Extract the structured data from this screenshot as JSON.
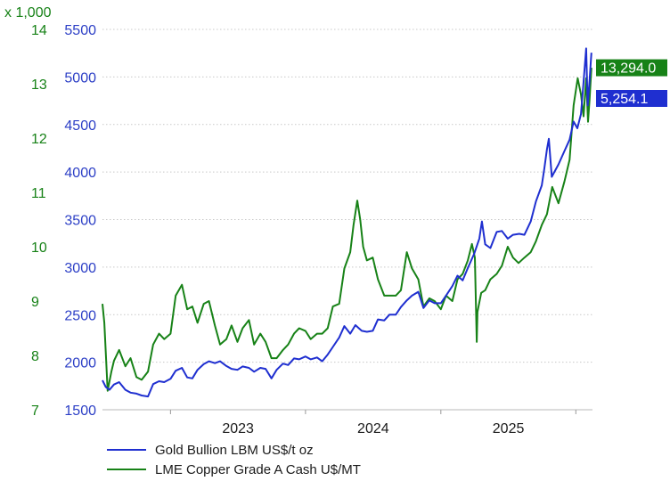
{
  "chart_data": {
    "type": "line",
    "multiplier_label": "x 1,000",
    "x_ticks": [
      "2023",
      "2024",
      "2025"
    ],
    "left_axis": {
      "ticks": [
        "7",
        "8",
        "9",
        "10",
        "11",
        "12",
        "13",
        "14"
      ],
      "ylim": [
        7,
        14
      ],
      "color": "#178217"
    },
    "right_axis": {
      "ticks": [
        "1500",
        "2000",
        "2500",
        "3000",
        "3500",
        "4000",
        "4500",
        "5000",
        "5500"
      ],
      "ylim": [
        1500,
        5500
      ],
      "color": "#2c3fc6"
    },
    "xlim": [
      "2022-07-01",
      "2026-02-15"
    ],
    "series": [
      {
        "name": "Gold Bullion LBM US$/t oz",
        "axis": "right",
        "color": "#1f2fd0",
        "last_label": "5,254.1",
        "points": [
          [
            "2022-07-01",
            1810
          ],
          [
            "2022-07-10",
            1740
          ],
          [
            "2022-07-20",
            1710
          ],
          [
            "2022-08-01",
            1765
          ],
          [
            "2022-08-15",
            1790
          ],
          [
            "2022-09-01",
            1710
          ],
          [
            "2022-09-15",
            1680
          ],
          [
            "2022-10-01",
            1670
          ],
          [
            "2022-10-15",
            1650
          ],
          [
            "2022-11-01",
            1640
          ],
          [
            "2022-11-15",
            1770
          ],
          [
            "2022-12-01",
            1800
          ],
          [
            "2022-12-15",
            1790
          ],
          [
            "2023-01-01",
            1825
          ],
          [
            "2023-01-15",
            1910
          ],
          [
            "2023-02-01",
            1940
          ],
          [
            "2023-02-15",
            1840
          ],
          [
            "2023-03-01",
            1830
          ],
          [
            "2023-03-15",
            1920
          ],
          [
            "2023-04-01",
            1980
          ],
          [
            "2023-04-15",
            2010
          ],
          [
            "2023-05-01",
            1990
          ],
          [
            "2023-05-15",
            2010
          ],
          [
            "2023-06-01",
            1960
          ],
          [
            "2023-06-15",
            1930
          ],
          [
            "2023-07-01",
            1920
          ],
          [
            "2023-07-15",
            1955
          ],
          [
            "2023-08-01",
            1940
          ],
          [
            "2023-08-15",
            1900
          ],
          [
            "2023-09-01",
            1940
          ],
          [
            "2023-09-15",
            1930
          ],
          [
            "2023-10-01",
            1830
          ],
          [
            "2023-10-15",
            1920
          ],
          [
            "2023-11-01",
            1985
          ],
          [
            "2023-11-15",
            1970
          ],
          [
            "2023-12-01",
            2040
          ],
          [
            "2023-12-15",
            2030
          ],
          [
            "2024-01-01",
            2060
          ],
          [
            "2024-01-15",
            2030
          ],
          [
            "2024-02-01",
            2050
          ],
          [
            "2024-02-15",
            2010
          ],
          [
            "2024-03-01",
            2080
          ],
          [
            "2024-03-15",
            2160
          ],
          [
            "2024-04-01",
            2260
          ],
          [
            "2024-04-15",
            2380
          ],
          [
            "2024-05-01",
            2300
          ],
          [
            "2024-05-15",
            2390
          ],
          [
            "2024-06-01",
            2330
          ],
          [
            "2024-06-15",
            2320
          ],
          [
            "2024-07-01",
            2330
          ],
          [
            "2024-07-15",
            2450
          ],
          [
            "2024-08-01",
            2440
          ],
          [
            "2024-08-15",
            2500
          ],
          [
            "2024-09-01",
            2500
          ],
          [
            "2024-09-15",
            2580
          ],
          [
            "2024-10-01",
            2650
          ],
          [
            "2024-10-15",
            2700
          ],
          [
            "2024-11-01",
            2740
          ],
          [
            "2024-11-15",
            2570
          ],
          [
            "2024-12-01",
            2650
          ],
          [
            "2024-12-15",
            2620
          ],
          [
            "2025-01-01",
            2620
          ],
          [
            "2025-01-15",
            2700
          ],
          [
            "2025-02-01",
            2800
          ],
          [
            "2025-02-15",
            2910
          ],
          [
            "2025-03-01",
            2860
          ],
          [
            "2025-03-15",
            2990
          ],
          [
            "2025-04-01",
            3140
          ],
          [
            "2025-04-15",
            3300
          ],
          [
            "2025-04-22",
            3480
          ],
          [
            "2025-05-01",
            3240
          ],
          [
            "2025-05-15",
            3200
          ],
          [
            "2025-06-01",
            3370
          ],
          [
            "2025-06-15",
            3380
          ],
          [
            "2025-07-01",
            3300
          ],
          [
            "2025-07-15",
            3340
          ],
          [
            "2025-08-01",
            3350
          ],
          [
            "2025-08-15",
            3340
          ],
          [
            "2025-09-01",
            3480
          ],
          [
            "2025-09-15",
            3690
          ],
          [
            "2025-10-01",
            3860
          ],
          [
            "2025-10-08",
            4040
          ],
          [
            "2025-10-15",
            4240
          ],
          [
            "2025-10-20",
            4350
          ],
          [
            "2025-10-28",
            3950
          ],
          [
            "2025-11-15",
            4080
          ],
          [
            "2025-12-01",
            4220
          ],
          [
            "2025-12-15",
            4340
          ],
          [
            "2025-12-26",
            4530
          ],
          [
            "2026-01-05",
            4460
          ],
          [
            "2026-01-15",
            4610
          ],
          [
            "2026-01-22",
            4950
          ],
          [
            "2026-01-29",
            5300
          ],
          [
            "2026-02-02",
            4700
          ],
          [
            "2026-02-07",
            4960
          ],
          [
            "2026-02-12",
            5254.1
          ]
        ]
      },
      {
        "name": "LME Copper Grade A Cash U$/MT",
        "axis": "left",
        "color": "#178217",
        "last_label": "13,294.0",
        "points": [
          [
            "2022-07-01",
            8.95
          ],
          [
            "2022-07-06",
            8.6
          ],
          [
            "2022-07-15",
            7.35
          ],
          [
            "2022-07-25",
            7.7
          ],
          [
            "2022-08-01",
            7.9
          ],
          [
            "2022-08-15",
            8.1
          ],
          [
            "2022-09-01",
            7.8
          ],
          [
            "2022-09-15",
            7.95
          ],
          [
            "2022-10-01",
            7.6
          ],
          [
            "2022-10-15",
            7.55
          ],
          [
            "2022-11-01",
            7.7
          ],
          [
            "2022-11-15",
            8.2
          ],
          [
            "2022-12-01",
            8.4
          ],
          [
            "2022-12-15",
            8.3
          ],
          [
            "2023-01-01",
            8.4
          ],
          [
            "2023-01-15",
            9.1
          ],
          [
            "2023-02-01",
            9.3
          ],
          [
            "2023-02-15",
            8.85
          ],
          [
            "2023-03-01",
            8.9
          ],
          [
            "2023-03-15",
            8.6
          ],
          [
            "2023-04-01",
            8.95
          ],
          [
            "2023-04-15",
            9.0
          ],
          [
            "2023-05-01",
            8.55
          ],
          [
            "2023-05-15",
            8.2
          ],
          [
            "2023-06-01",
            8.3
          ],
          [
            "2023-06-15",
            8.55
          ],
          [
            "2023-07-01",
            8.25
          ],
          [
            "2023-07-15",
            8.5
          ],
          [
            "2023-08-01",
            8.65
          ],
          [
            "2023-08-15",
            8.2
          ],
          [
            "2023-09-01",
            8.4
          ],
          [
            "2023-09-15",
            8.25
          ],
          [
            "2023-10-01",
            7.95
          ],
          [
            "2023-10-15",
            7.95
          ],
          [
            "2023-11-01",
            8.1
          ],
          [
            "2023-11-15",
            8.2
          ],
          [
            "2023-12-01",
            8.4
          ],
          [
            "2023-12-15",
            8.5
          ],
          [
            "2024-01-01",
            8.45
          ],
          [
            "2024-01-15",
            8.3
          ],
          [
            "2024-02-01",
            8.4
          ],
          [
            "2024-02-15",
            8.4
          ],
          [
            "2024-03-01",
            8.5
          ],
          [
            "2024-03-15",
            8.9
          ],
          [
            "2024-04-01",
            8.95
          ],
          [
            "2024-04-15",
            9.6
          ],
          [
            "2024-05-01",
            9.9
          ],
          [
            "2024-05-10",
            10.4
          ],
          [
            "2024-05-20",
            10.85
          ],
          [
            "2024-05-28",
            10.5
          ],
          [
            "2024-06-05",
            10.0
          ],
          [
            "2024-06-15",
            9.75
          ],
          [
            "2024-07-01",
            9.8
          ],
          [
            "2024-07-15",
            9.4
          ],
          [
            "2024-08-01",
            9.1
          ],
          [
            "2024-08-15",
            9.1
          ],
          [
            "2024-09-01",
            9.1
          ],
          [
            "2024-09-15",
            9.2
          ],
          [
            "2024-10-01",
            9.9
          ],
          [
            "2024-10-15",
            9.6
          ],
          [
            "2024-11-01",
            9.4
          ],
          [
            "2024-11-15",
            8.9
          ],
          [
            "2024-12-01",
            9.05
          ],
          [
            "2024-12-15",
            9.0
          ],
          [
            "2025-01-01",
            8.85
          ],
          [
            "2025-01-15",
            9.1
          ],
          [
            "2025-02-01",
            9.0
          ],
          [
            "2025-02-15",
            9.4
          ],
          [
            "2025-03-01",
            9.5
          ],
          [
            "2025-03-15",
            9.75
          ],
          [
            "2025-03-26",
            10.05
          ],
          [
            "2025-04-03",
            9.8
          ],
          [
            "2025-04-08",
            8.25
          ],
          [
            "2025-04-10",
            8.8
          ],
          [
            "2025-04-20",
            9.15
          ],
          [
            "2025-05-01",
            9.2
          ],
          [
            "2025-05-15",
            9.4
          ],
          [
            "2025-06-01",
            9.5
          ],
          [
            "2025-06-15",
            9.65
          ],
          [
            "2025-07-01",
            10.0
          ],
          [
            "2025-07-15",
            9.8
          ],
          [
            "2025-07-30",
            9.7
          ],
          [
            "2025-08-15",
            9.8
          ],
          [
            "2025-09-01",
            9.9
          ],
          [
            "2025-09-15",
            10.1
          ],
          [
            "2025-10-01",
            10.4
          ],
          [
            "2025-10-15",
            10.6
          ],
          [
            "2025-10-29",
            11.1
          ],
          [
            "2025-11-15",
            10.8
          ],
          [
            "2025-12-01",
            11.2
          ],
          [
            "2025-12-15",
            11.6
          ],
          [
            "2025-12-26",
            12.6
          ],
          [
            "2026-01-06",
            13.1
          ],
          [
            "2026-01-15",
            12.8
          ],
          [
            "2026-01-22",
            12.4
          ],
          [
            "2026-01-29",
            13.1
          ],
          [
            "2026-02-03",
            12.3
          ],
          [
            "2026-02-07",
            12.7
          ],
          [
            "2026-02-12",
            13.294
          ]
        ]
      }
    ]
  },
  "legend": {
    "gold_label": "Gold Bullion LBM US$/t oz",
    "copper_label": "LME Copper Grade A Cash U$/MT"
  }
}
